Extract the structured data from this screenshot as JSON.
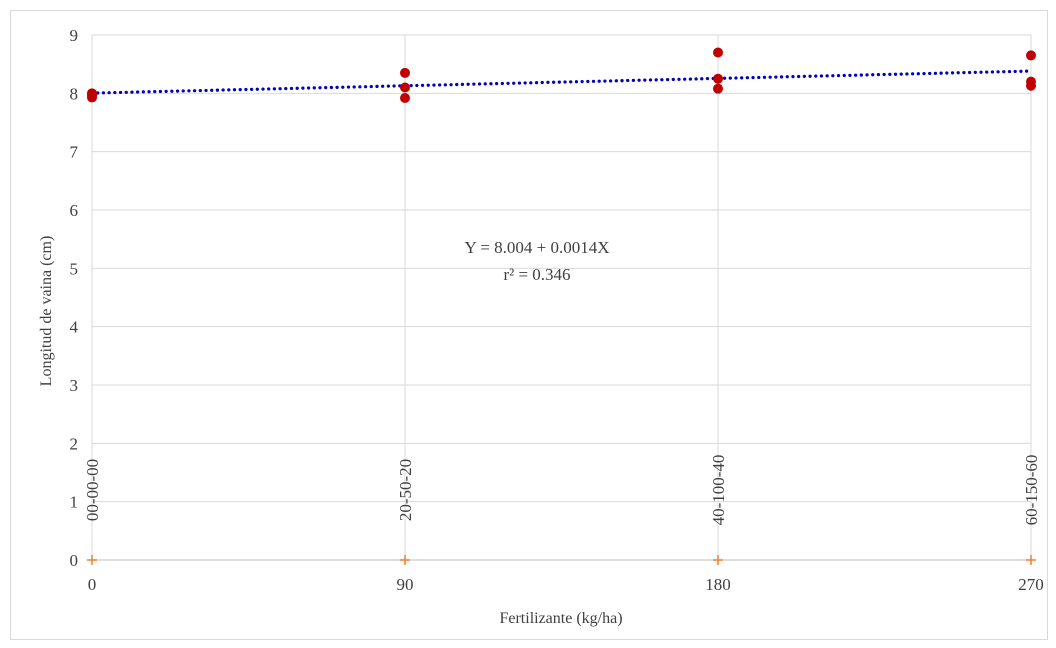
{
  "chart_data": {
    "type": "scatter",
    "title": "",
    "xlabel": "Fertilizante  (kg/ha)",
    "ylabel": "Longitud de vaina (cm)",
    "xlim": [
      0,
      270
    ],
    "ylim": [
      0,
      9
    ],
    "x_ticks": [
      0,
      90,
      180,
      270
    ],
    "y_ticks": [
      0,
      1,
      2,
      3,
      4,
      5,
      6,
      7,
      8,
      9
    ],
    "grid": true,
    "category_labels": [
      {
        "x": 0,
        "label": "00-00-00"
      },
      {
        "x": 90,
        "label": "20-50-20"
      },
      {
        "x": 180,
        "label": "40-100-40"
      },
      {
        "x": 270,
        "label": "60-150-60"
      }
    ],
    "series": [
      {
        "color": "#c00000",
        "points": [
          {
            "x": 0,
            "y": 8.0
          },
          {
            "x": 0,
            "y": 7.97
          },
          {
            "x": 0,
            "y": 7.93
          },
          {
            "x": 90,
            "y": 8.35
          },
          {
            "x": 90,
            "y": 8.1
          },
          {
            "x": 90,
            "y": 7.92
          },
          {
            "x": 180,
            "y": 8.7
          },
          {
            "x": 180,
            "y": 8.25
          },
          {
            "x": 180,
            "y": 8.08
          },
          {
            "x": 270,
            "y": 8.65
          },
          {
            "x": 270,
            "y": 8.2
          },
          {
            "x": 270,
            "y": 8.13
          }
        ]
      },
      {
        "color": "#ed7d31",
        "points": [
          {
            "x": 0,
            "y": 0
          },
          {
            "x": 90,
            "y": 0
          },
          {
            "x": 180,
            "y": 0
          },
          {
            "x": 270,
            "y": 0
          }
        ]
      }
    ],
    "trendline": {
      "intercept": 8.004,
      "slope": 0.0014,
      "color": "#0000c0",
      "style": "dotted"
    },
    "annotation": {
      "line1": "Y = 8.004 + 0.0014X",
      "line2": "r² = 0.346"
    }
  }
}
